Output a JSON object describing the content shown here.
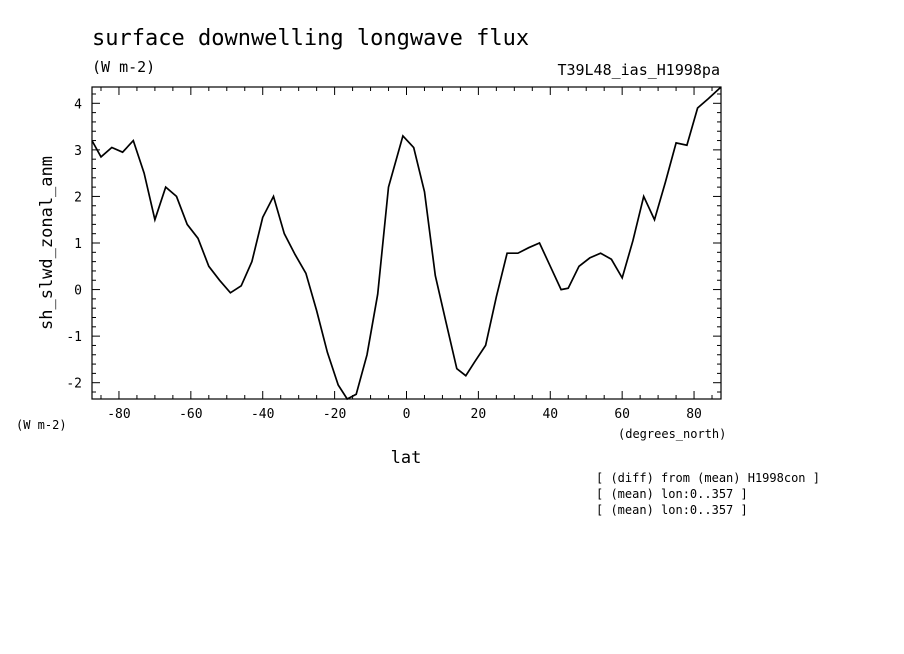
{
  "header": {
    "title": "surface downwelling longwave flux",
    "units": "(W m-2)",
    "run_id": "T39L48_ias_H1998pa"
  },
  "axes": {
    "y_units_left": "(W m-2)",
    "x_units": "(degrees_north)"
  },
  "notes": [
    "[ (diff) from (mean) H1998con ]",
    "[ (mean) lon:0..357 ]",
    "[ (mean) lon:0..357 ]"
  ],
  "chart_data": {
    "type": "line",
    "xlabel": "lat",
    "ylabel": "sh_slwd_zonal_anm",
    "xlim": [
      -87.5,
      87.5
    ],
    "ylim": [
      -2.35,
      4.35
    ],
    "xticks": [
      -80,
      -60,
      -40,
      -20,
      0,
      20,
      40,
      60,
      80
    ],
    "xtick_labels": [
      "-80",
      "-60",
      "-40",
      "-20",
      "0",
      "20",
      "40",
      "60",
      "80"
    ],
    "yticks": [
      -2,
      -1,
      0,
      1,
      2,
      3,
      4
    ],
    "ytick_labels": [
      "-2",
      "-1",
      "0",
      "1",
      "2",
      "3",
      "4"
    ],
    "grid": false,
    "series": [
      {
        "color": "#000000",
        "x": [
          -87.5,
          -85,
          -82,
          -79,
          -76,
          -73,
          -70,
          -67,
          -64,
          -61,
          -58,
          -55,
          -52,
          -49,
          -46,
          -43,
          -40,
          -37,
          -34,
          -31,
          -28,
          -25,
          -22,
          -19,
          -16.5,
          -14,
          -11,
          -8,
          -5,
          -1,
          2,
          5,
          8,
          11,
          14,
          16.5,
          19,
          22,
          25,
          28,
          31,
          34,
          37,
          40,
          43,
          45,
          48,
          51,
          54,
          57,
          60,
          63,
          66,
          69,
          72,
          75,
          78,
          81,
          84,
          87.5
        ],
        "y": [
          3.2,
          2.85,
          3.05,
          2.95,
          3.2,
          2.5,
          1.5,
          2.2,
          2.0,
          1.4,
          1.1,
          0.5,
          0.2,
          -0.07,
          0.08,
          0.6,
          1.55,
          2.0,
          1.2,
          0.75,
          0.35,
          -0.45,
          -1.35,
          -2.05,
          -2.35,
          -2.25,
          -1.4,
          -0.1,
          2.2,
          3.3,
          3.05,
          2.1,
          0.3,
          -0.7,
          -1.7,
          -1.85,
          -1.55,
          -1.2,
          -0.15,
          0.78,
          0.78,
          0.9,
          1.0,
          0.5,
          0.0,
          0.03,
          0.5,
          0.68,
          0.78,
          0.65,
          0.25,
          1.05,
          2.0,
          1.5,
          2.3,
          3.15,
          3.1,
          3.9,
          4.1,
          4.35
        ]
      }
    ]
  }
}
